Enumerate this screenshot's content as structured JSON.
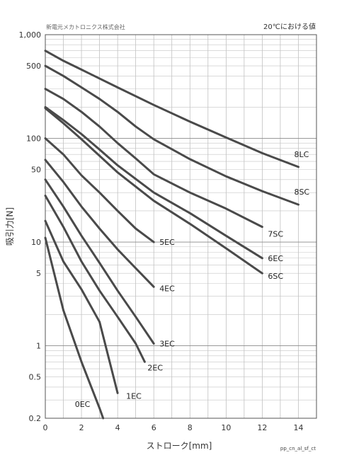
{
  "chart_data": {
    "type": "line",
    "company": "新電元メカトロニクス株式会社",
    "note": "20℃における値",
    "xlabel": "ストローク[mm]",
    "ylabel": "吸引力[N]",
    "footer_code": "pp_cn_al_sf_ct",
    "xlim": [
      0,
      15
    ],
    "ylim": [
      0.2,
      1000
    ],
    "yscale": "log",
    "grid": true,
    "x_ticks": [
      0,
      2,
      4,
      6,
      8,
      10,
      12,
      14
    ],
    "y_ticks": [
      {
        "value": 0.2,
        "label": "0.2"
      },
      {
        "value": 0.5,
        "label": "0.5"
      },
      {
        "value": 1,
        "label": "1"
      },
      {
        "value": 5,
        "label": "5"
      },
      {
        "value": 10,
        "label": "10"
      },
      {
        "value": 50,
        "label": "50"
      },
      {
        "value": 100,
        "label": "100"
      },
      {
        "value": 500,
        "label": "500"
      },
      {
        "value": 1000,
        "label": "1,000"
      }
    ],
    "series": [
      {
        "name": "8LC",
        "x": [
          0,
          1,
          2,
          4,
          6,
          8,
          10,
          12,
          14
        ],
        "y": [
          700,
          560,
          460,
          310,
          210,
          145,
          102,
          72,
          53
        ]
      },
      {
        "name": "8SC",
        "x": [
          0,
          1,
          2,
          3,
          4,
          5,
          6,
          8,
          10,
          12,
          14
        ],
        "y": [
          500,
          400,
          310,
          240,
          180,
          130,
          98,
          63,
          43,
          31,
          23
        ]
      },
      {
        "name": "7SC",
        "x": [
          0,
          1,
          2,
          3,
          4,
          5,
          6,
          8,
          10,
          12
        ],
        "y": [
          300,
          240,
          180,
          130,
          90,
          64,
          45,
          30,
          21,
          14
        ]
      },
      {
        "name": "6EC",
        "x": [
          0,
          1,
          2,
          3,
          4,
          6,
          8,
          10,
          12
        ],
        "y": [
          200,
          150,
          110,
          78,
          55,
          30,
          19,
          11.5,
          7
        ]
      },
      {
        "name": "6SC",
        "x": [
          0,
          1,
          2,
          3,
          4,
          6,
          8,
          10,
          12
        ],
        "y": [
          195,
          140,
          98,
          68,
          47,
          25,
          15,
          8.7,
          5
        ]
      },
      {
        "name": "5EC",
        "x": [
          0,
          1,
          2,
          3,
          4,
          5,
          6
        ],
        "y": [
          100,
          70,
          44,
          30,
          20,
          13.5,
          10
        ]
      },
      {
        "name": "4EC",
        "x": [
          0,
          1,
          2,
          3,
          4,
          5,
          6
        ],
        "y": [
          62,
          38,
          22,
          13.5,
          8.5,
          5.6,
          3.7
        ]
      },
      {
        "name": "3EC",
        "x": [
          0,
          1,
          2,
          3,
          4,
          5,
          6
        ],
        "y": [
          40,
          22,
          11.5,
          6.3,
          3.4,
          1.9,
          1.05
        ]
      },
      {
        "name": "2EC",
        "x": [
          0,
          1,
          2,
          3,
          4,
          5,
          5.5
        ],
        "y": [
          28,
          14,
          6.5,
          3.4,
          1.9,
          1.05,
          0.7
        ]
      },
      {
        "name": "1EC",
        "x": [
          0,
          1,
          2,
          3,
          4
        ],
        "y": [
          16,
          6.5,
          3.5,
          1.7,
          0.35
        ]
      },
      {
        "name": "0EC",
        "x": [
          0,
          1,
          2,
          3,
          3.2
        ],
        "y": [
          11,
          2.2,
          0.7,
          0.25,
          0.2
        ]
      }
    ]
  }
}
